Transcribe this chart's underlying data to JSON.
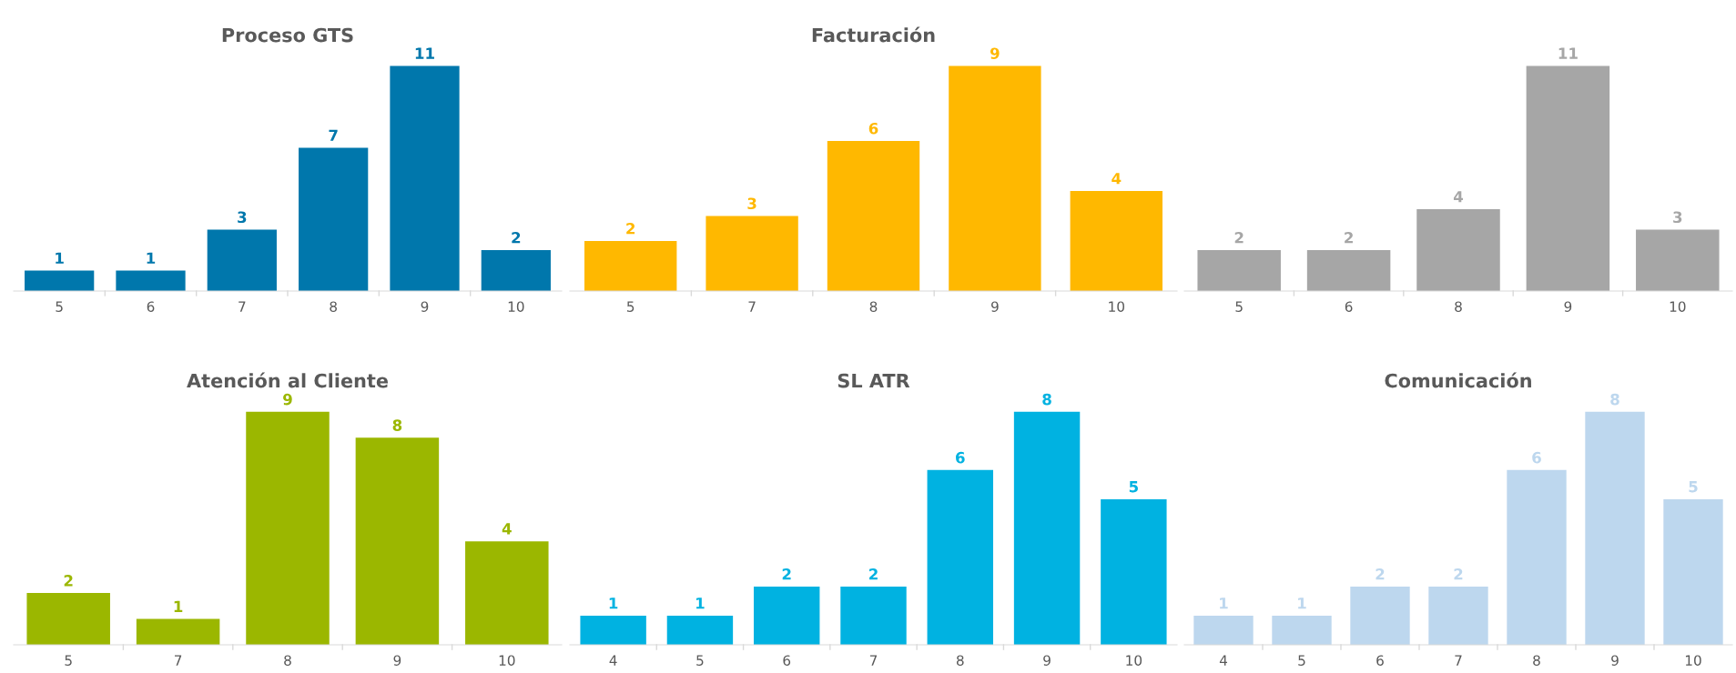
{
  "chart_data": [
    {
      "type": "bar",
      "title": "Proceso GTS",
      "categories": [
        "5",
        "6",
        "7",
        "8",
        "9",
        "10"
      ],
      "values": [
        1,
        1,
        3,
        7,
        11,
        2
      ],
      "color": "#0077ac",
      "data_labels": true,
      "tick_labels": "x",
      "grid": false,
      "legend": false
    },
    {
      "type": "bar",
      "title": "Facturación",
      "categories": [
        "5",
        "7",
        "8",
        "9",
        "10"
      ],
      "values": [
        2,
        3,
        6,
        9,
        4
      ],
      "color": "#ffb800",
      "data_labels": true,
      "tick_labels": "x",
      "grid": false,
      "legend": false
    },
    {
      "type": "bar",
      "categories": [
        "5",
        "6",
        "8",
        "9",
        "10"
      ],
      "values": [
        2,
        2,
        4,
        11,
        3
      ],
      "color": "#a6a6a6",
      "data_labels": true,
      "tick_labels": "x",
      "grid": false,
      "legend": false
    },
    {
      "type": "bar",
      "title": "Atención al Cliente",
      "categories": [
        "5",
        "7",
        "8",
        "9",
        "10"
      ],
      "values": [
        2,
        1,
        9,
        8,
        4
      ],
      "color": "#9bb700",
      "data_labels": true,
      "tick_labels": "x",
      "grid": false,
      "legend": false
    },
    {
      "type": "bar",
      "title": "SL ATR",
      "categories": [
        "4",
        "5",
        "6",
        "7",
        "8",
        "9",
        "10"
      ],
      "values": [
        1,
        1,
        2,
        2,
        6,
        8,
        5
      ],
      "color": "#00b2e1",
      "data_labels": true,
      "tick_labels": "x",
      "grid": false,
      "legend": false
    },
    {
      "type": "bar",
      "title": "Comunicación",
      "categories": [
        "4",
        "5",
        "6",
        "7",
        "8",
        "9",
        "10"
      ],
      "values": [
        1,
        1,
        2,
        2,
        6,
        8,
        5
      ],
      "color": "#bdd7ee",
      "data_labels": true,
      "tick_labels": "x",
      "grid": false,
      "legend": false
    }
  ]
}
